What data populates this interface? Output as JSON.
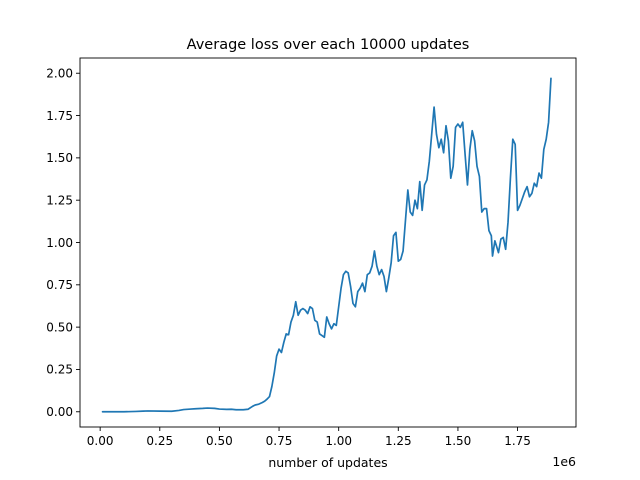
{
  "chart_data": {
    "type": "line",
    "title": "Average loss over each 10000 updates",
    "xlabel": "number of updates",
    "ylabel": "",
    "x_offset_label": "1e6",
    "xlim": [
      -0.0845,
      1.995
    ],
    "ylim": [
      -0.09,
      2.09
    ],
    "x_ticks": [
      0.25,
      0.5,
      0.75,
      1.0,
      1.25,
      1.5,
      1.75
    ],
    "x_tick_labels": [
      "0.25",
      "0.50",
      "0.75",
      "1.00",
      "1.25",
      "1.50",
      "1.75"
    ],
    "x_zero_tick_label": "0.00",
    "y_ticks": [
      0.0,
      0.25,
      0.5,
      0.75,
      1.0,
      1.25,
      1.5,
      1.75,
      2.0
    ],
    "y_tick_labels": [
      "0.00",
      "0.25",
      "0.50",
      "0.75",
      "1.00",
      "1.25",
      "1.50",
      "1.75",
      "2.00"
    ],
    "grid": false,
    "series": [
      {
        "color": "#1f77b4",
        "points": [
          [
            0.01,
            0.0
          ],
          [
            0.05,
            0.0
          ],
          [
            0.1,
            0.0
          ],
          [
            0.15,
            0.002
          ],
          [
            0.18,
            0.004
          ],
          [
            0.2,
            0.005
          ],
          [
            0.25,
            0.004
          ],
          [
            0.3,
            0.003
          ],
          [
            0.33,
            0.008
          ],
          [
            0.35,
            0.013
          ],
          [
            0.38,
            0.016
          ],
          [
            0.4,
            0.018
          ],
          [
            0.43,
            0.02
          ],
          [
            0.45,
            0.022
          ],
          [
            0.48,
            0.02
          ],
          [
            0.5,
            0.016
          ],
          [
            0.53,
            0.014
          ],
          [
            0.55,
            0.015
          ],
          [
            0.57,
            0.012
          ],
          [
            0.6,
            0.012
          ],
          [
            0.62,
            0.015
          ],
          [
            0.64,
            0.033
          ],
          [
            0.65,
            0.04
          ],
          [
            0.665,
            0.045
          ],
          [
            0.68,
            0.055
          ],
          [
            0.69,
            0.063
          ],
          [
            0.7,
            0.075
          ],
          [
            0.71,
            0.09
          ],
          [
            0.72,
            0.15
          ],
          [
            0.73,
            0.23
          ],
          [
            0.74,
            0.33
          ],
          [
            0.75,
            0.37
          ],
          [
            0.76,
            0.35
          ],
          [
            0.77,
            0.41
          ],
          [
            0.78,
            0.46
          ],
          [
            0.79,
            0.455
          ],
          [
            0.8,
            0.53
          ],
          [
            0.81,
            0.57
          ],
          [
            0.82,
            0.65
          ],
          [
            0.83,
            0.57
          ],
          [
            0.84,
            0.6
          ],
          [
            0.85,
            0.61
          ],
          [
            0.86,
            0.6
          ],
          [
            0.87,
            0.58
          ],
          [
            0.88,
            0.62
          ],
          [
            0.89,
            0.61
          ],
          [
            0.9,
            0.54
          ],
          [
            0.91,
            0.53
          ],
          [
            0.92,
            0.46
          ],
          [
            0.93,
            0.45
          ],
          [
            0.94,
            0.44
          ],
          [
            0.95,
            0.56
          ],
          [
            0.96,
            0.52
          ],
          [
            0.97,
            0.49
          ],
          [
            0.98,
            0.52
          ],
          [
            0.99,
            0.51
          ],
          [
            1.0,
            0.62
          ],
          [
            1.01,
            0.73
          ],
          [
            1.02,
            0.81
          ],
          [
            1.03,
            0.83
          ],
          [
            1.04,
            0.82
          ],
          [
            1.05,
            0.74
          ],
          [
            1.06,
            0.64
          ],
          [
            1.07,
            0.62
          ],
          [
            1.08,
            0.71
          ],
          [
            1.09,
            0.73
          ],
          [
            1.1,
            0.76
          ],
          [
            1.11,
            0.71
          ],
          [
            1.12,
            0.81
          ],
          [
            1.13,
            0.82
          ],
          [
            1.14,
            0.86
          ],
          [
            1.15,
            0.95
          ],
          [
            1.16,
            0.86
          ],
          [
            1.17,
            0.81
          ],
          [
            1.18,
            0.84
          ],
          [
            1.19,
            0.8
          ],
          [
            1.2,
            0.71
          ],
          [
            1.21,
            0.79
          ],
          [
            1.22,
            0.88
          ],
          [
            1.23,
            1.04
          ],
          [
            1.24,
            1.06
          ],
          [
            1.25,
            0.89
          ],
          [
            1.26,
            0.9
          ],
          [
            1.27,
            0.95
          ],
          [
            1.28,
            1.13
          ],
          [
            1.29,
            1.31
          ],
          [
            1.3,
            1.18
          ],
          [
            1.31,
            1.16
          ],
          [
            1.32,
            1.25
          ],
          [
            1.33,
            1.2
          ],
          [
            1.34,
            1.36
          ],
          [
            1.35,
            1.19
          ],
          [
            1.36,
            1.34
          ],
          [
            1.37,
            1.37
          ],
          [
            1.38,
            1.48
          ],
          [
            1.39,
            1.64
          ],
          [
            1.4,
            1.8
          ],
          [
            1.41,
            1.64
          ],
          [
            1.42,
            1.56
          ],
          [
            1.43,
            1.61
          ],
          [
            1.44,
            1.53
          ],
          [
            1.45,
            1.69
          ],
          [
            1.46,
            1.6
          ],
          [
            1.47,
            1.38
          ],
          [
            1.48,
            1.45
          ],
          [
            1.49,
            1.68
          ],
          [
            1.5,
            1.7
          ],
          [
            1.51,
            1.68
          ],
          [
            1.52,
            1.71
          ],
          [
            1.53,
            1.52
          ],
          [
            1.54,
            1.34
          ],
          [
            1.55,
            1.55
          ],
          [
            1.56,
            1.66
          ],
          [
            1.57,
            1.6
          ],
          [
            1.58,
            1.45
          ],
          [
            1.59,
            1.39
          ],
          [
            1.6,
            1.18
          ],
          [
            1.61,
            1.2
          ],
          [
            1.62,
            1.2
          ],
          [
            1.63,
            1.07
          ],
          [
            1.64,
            1.04
          ],
          [
            1.645,
            0.92
          ],
          [
            1.655,
            1.01
          ],
          [
            1.67,
            0.94
          ],
          [
            1.68,
            1.02
          ],
          [
            1.69,
            1.03
          ],
          [
            1.7,
            0.96
          ],
          [
            1.71,
            1.12
          ],
          [
            1.72,
            1.38
          ],
          [
            1.73,
            1.61
          ],
          [
            1.74,
            1.58
          ],
          [
            1.75,
            1.19
          ],
          [
            1.76,
            1.22
          ],
          [
            1.77,
            1.26
          ],
          [
            1.78,
            1.3
          ],
          [
            1.79,
            1.33
          ],
          [
            1.8,
            1.27
          ],
          [
            1.81,
            1.29
          ],
          [
            1.82,
            1.35
          ],
          [
            1.83,
            1.33
          ],
          [
            1.84,
            1.41
          ],
          [
            1.85,
            1.38
          ],
          [
            1.86,
            1.55
          ],
          [
            1.87,
            1.61
          ],
          [
            1.88,
            1.71
          ],
          [
            1.89,
            1.97
          ]
        ]
      }
    ]
  }
}
